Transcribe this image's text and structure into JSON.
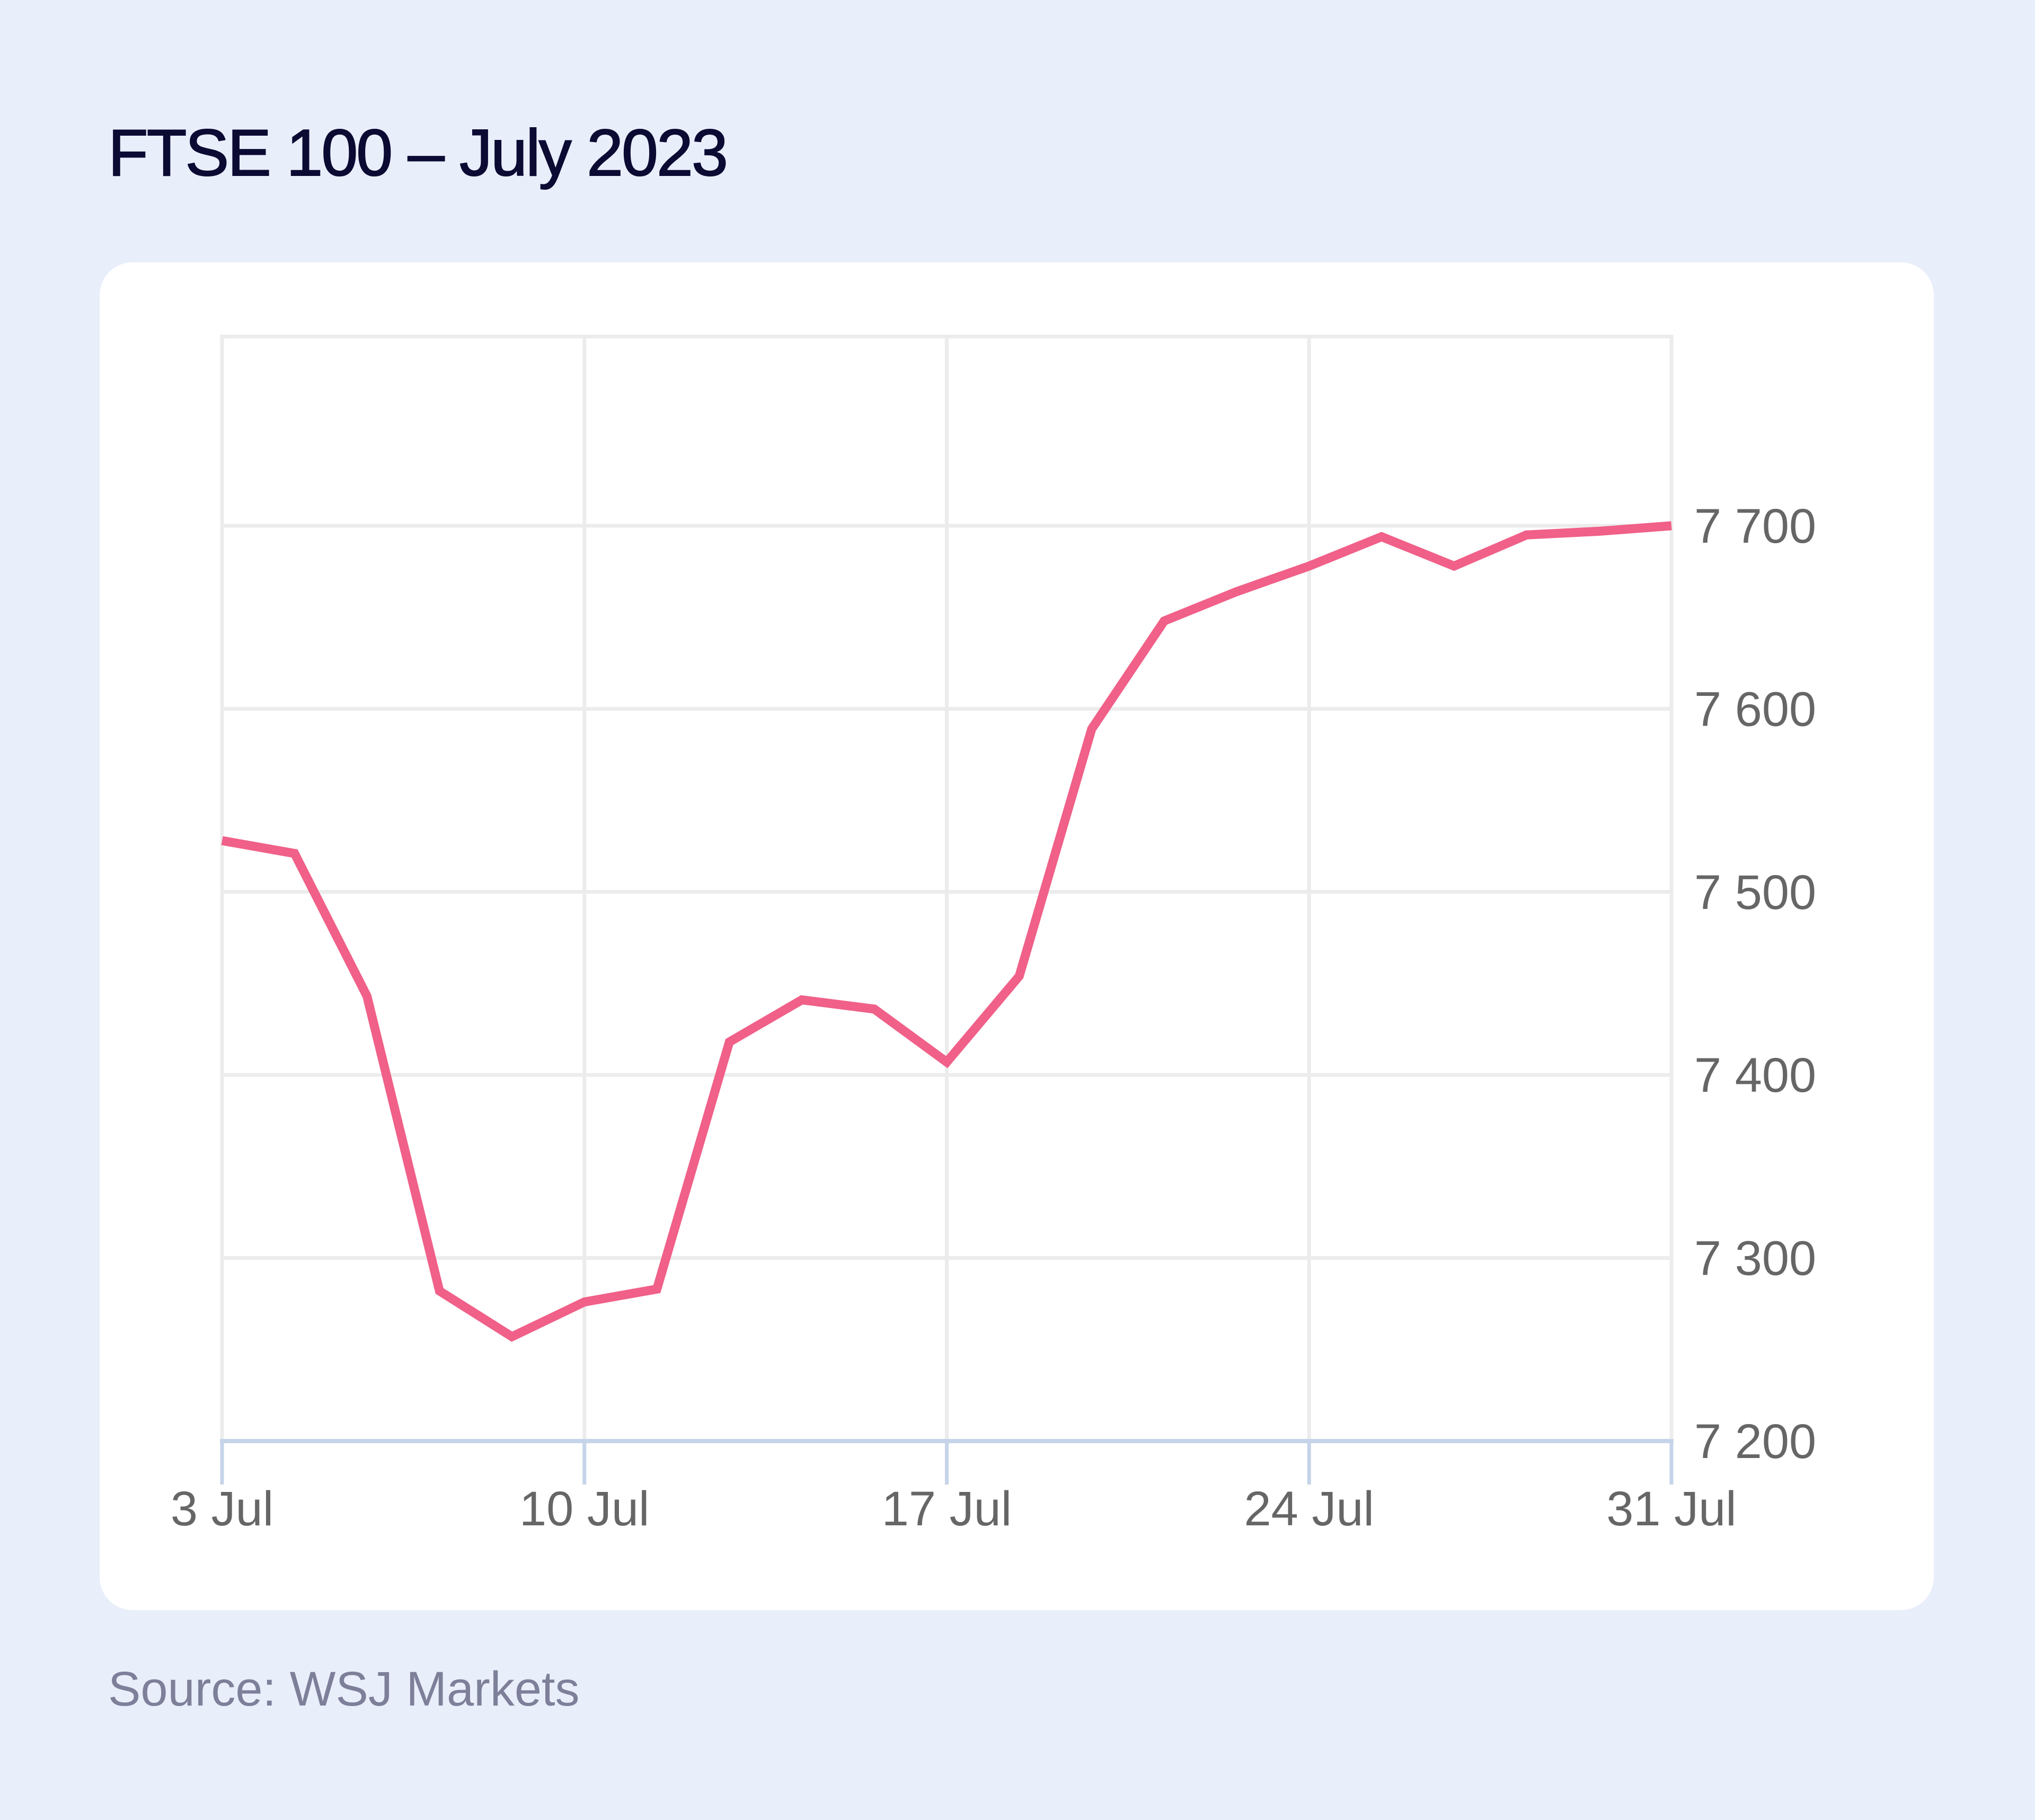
{
  "header": {
    "title": "FTSE 100 – July 2023"
  },
  "footer": {
    "source": "Source: WSJ Markets"
  },
  "colors": {
    "background": "#e9eefb",
    "card": "#ffffff",
    "title": "#0b0a33",
    "line": "#f06088",
    "grid": "#ececec",
    "axis": "#c5d4e8",
    "tick_label": "#666666",
    "source_text": "#7e7f99"
  },
  "chart_data": {
    "type": "line",
    "title": "FTSE 100 – July 2023",
    "xlabel": "",
    "ylabel": "",
    "x": [
      "3 Jul",
      "4 Jul",
      "5 Jul",
      "6 Jul",
      "7 Jul",
      "10 Jul",
      "11 Jul",
      "12 Jul",
      "13 Jul",
      "14 Jul",
      "17 Jul",
      "18 Jul",
      "19 Jul",
      "20 Jul",
      "21 Jul",
      "24 Jul",
      "25 Jul",
      "26 Jul",
      "27 Jul",
      "28 Jul",
      "31 Jul"
    ],
    "series": [
      {
        "name": "FTSE 100",
        "color": "#f06088",
        "values": [
          7528,
          7521,
          7443,
          7282,
          7257,
          7276,
          7283,
          7418,
          7441,
          7436,
          7407,
          7454,
          7589,
          7648,
          7664,
          7678,
          7694,
          7678,
          7695,
          7697,
          7700
        ]
      }
    ],
    "x_ticks": [
      "3 Jul",
      "10 Jul",
      "17 Jul",
      "24 Jul",
      "31 Jul"
    ],
    "x_tick_indices": [
      0,
      5,
      10,
      15,
      20
    ],
    "y_ticks": [
      7200,
      7300,
      7400,
      7500,
      7600,
      7700
    ],
    "y_tick_labels": [
      "7 200",
      "7 300",
      "7 400",
      "7 500",
      "7 600",
      "7 700"
    ],
    "ylim": [
      7200,
      7803
    ],
    "y_axis_position": "right",
    "grid": true,
    "legend": "none",
    "source": "Source: WSJ Markets"
  }
}
